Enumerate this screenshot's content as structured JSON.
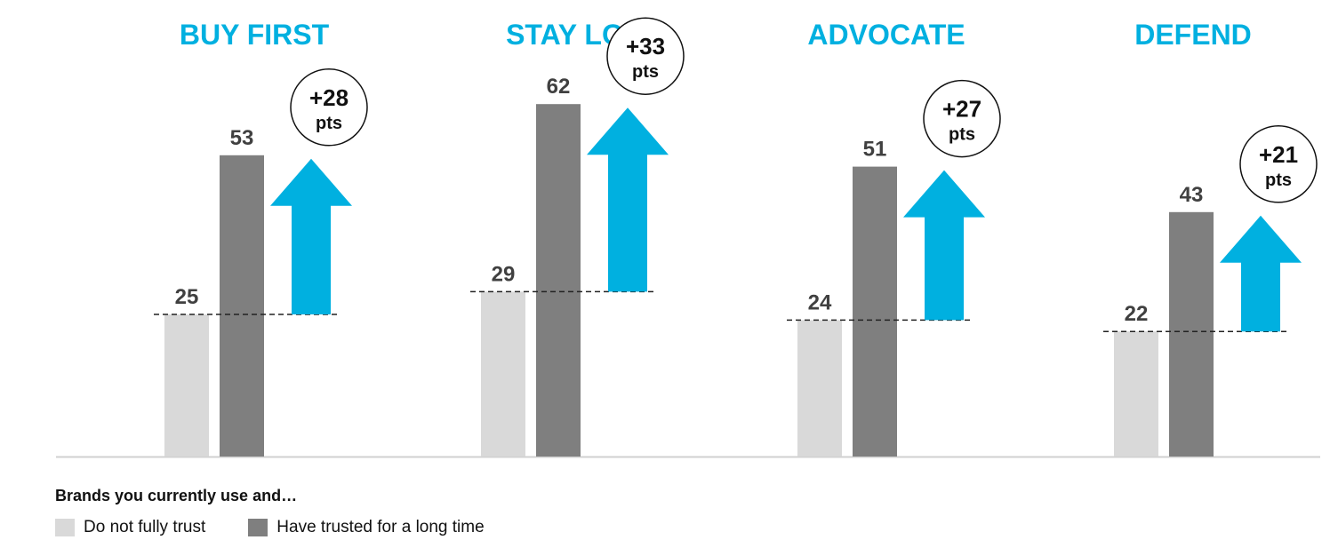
{
  "chart_data": {
    "type": "bar",
    "categories": [
      "BUY FIRST",
      "STAY LOYAL",
      "ADVOCATE",
      "DEFEND"
    ],
    "series": [
      {
        "name": "Do not fully trust",
        "values": [
          25,
          29,
          24,
          22
        ],
        "color": "#d9d9d9"
      },
      {
        "name": "Have trusted for a long time",
        "values": [
          53,
          62,
          51,
          43
        ],
        "color": "#7f7f7f"
      }
    ],
    "differences": [
      "+28",
      "+33",
      "+27",
      "+21"
    ],
    "difference_unit": "pts",
    "ylim": [
      0,
      70
    ],
    "accent_color": "#00b0e0"
  },
  "legend": {
    "title": "Brands you currently use and…",
    "items": [
      "Do not fully trust",
      "Have trusted for a long time"
    ]
  }
}
